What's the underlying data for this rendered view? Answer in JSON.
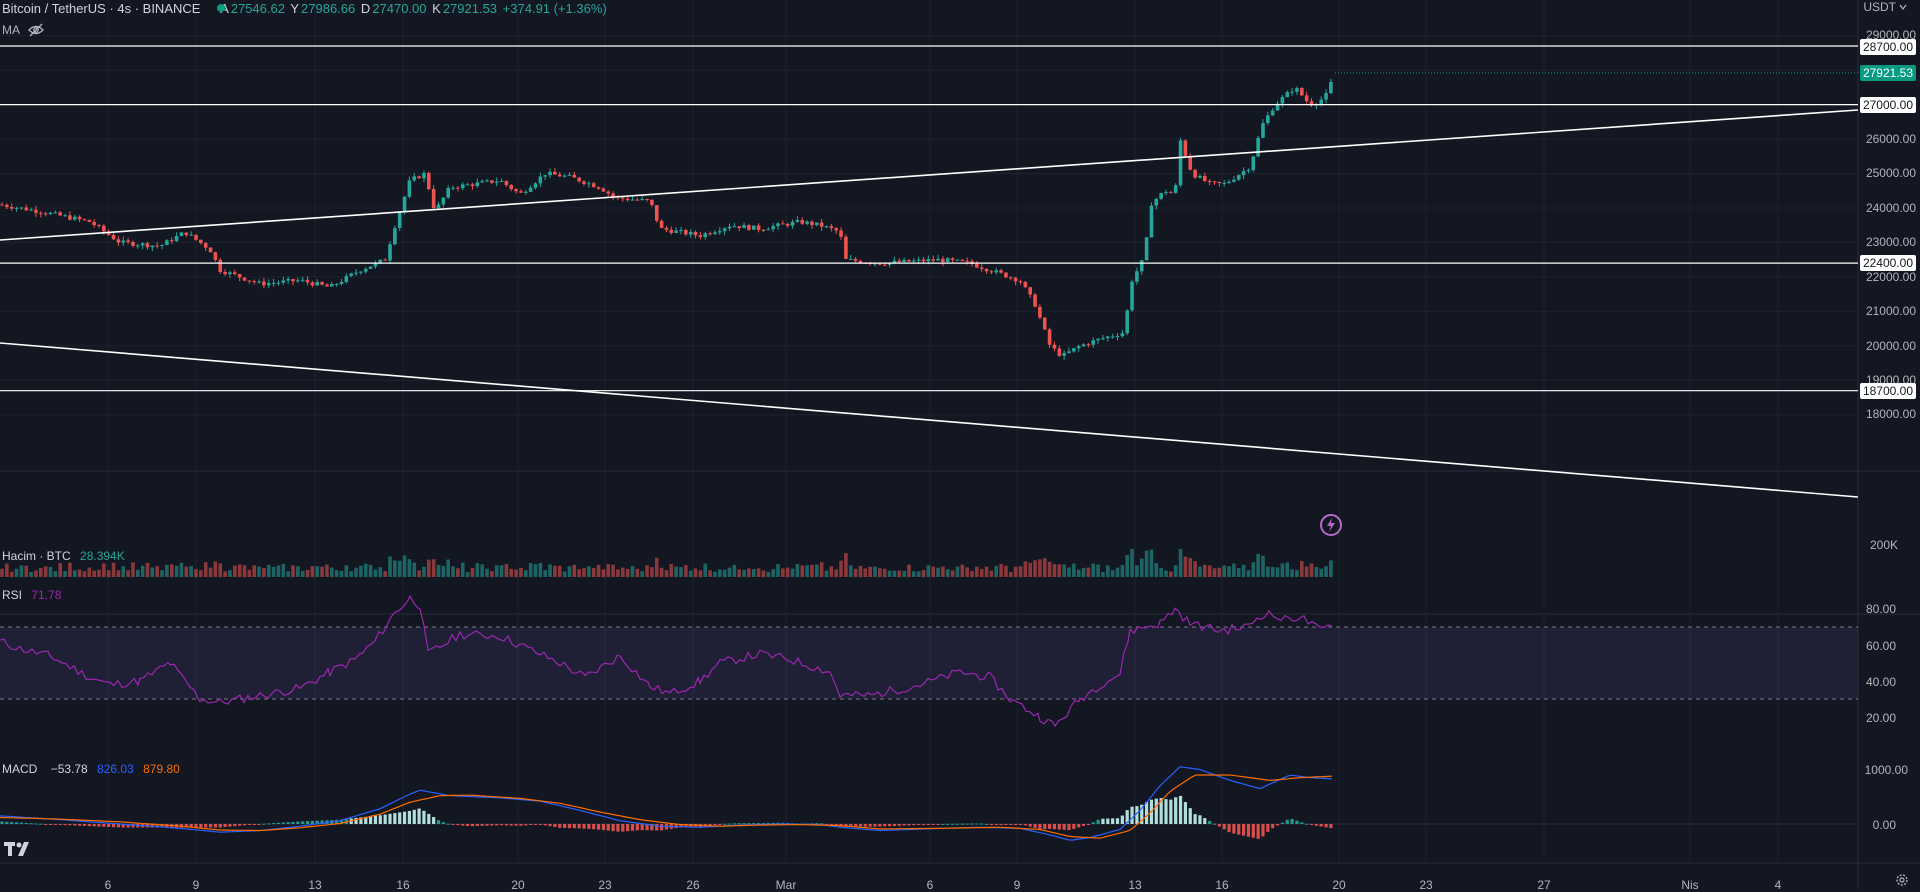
{
  "header": {
    "symbol": "Bitcoin / TetherUS · 4s · BINANCE",
    "open_label": "A",
    "open": "27546.62",
    "high_label": "Y",
    "high": "27986.66",
    "low_label": "D",
    "low": "27470.00",
    "close_label": "K",
    "close": "27921.53",
    "change": "+374.91 (+1.36%)",
    "ma_label": "MA",
    "currency": "USDT"
  },
  "price_axis": {
    "ticks": [
      "29000.00",
      "26000.00",
      "25000.00",
      "24000.00",
      "23000.00",
      "22000.00",
      "21000.00",
      "20000.00",
      "19000.00",
      "18000.00"
    ],
    "hlines": [
      "28700.00",
      "27000.00",
      "22400.00",
      "18700.00"
    ],
    "last_price": "27921.53"
  },
  "volume": {
    "label": "Hacim · BTC",
    "value": "28.394K",
    "axis_tick": "200K"
  },
  "rsi": {
    "label": "RSI",
    "value": "71.78",
    "ticks": [
      "80.00",
      "60.00",
      "40.00",
      "20.00"
    ]
  },
  "macd": {
    "label": "MACD",
    "hist": "−53.78",
    "macd": "826.03",
    "signal": "879.80",
    "ticks": [
      "1000.00",
      "0.00"
    ]
  },
  "time_axis": [
    "6",
    "9",
    "13",
    "16",
    "20",
    "23",
    "26",
    "Mar",
    "6",
    "9",
    "13",
    "16",
    "20",
    "23",
    "27",
    "Nis",
    "4"
  ],
  "colors": {
    "up": "#26a69a",
    "down": "#ef5350",
    "rsi": "#9c27b0",
    "macd": "#2962ff",
    "signal": "#ff6d00",
    "background": "#131722"
  },
  "icons": [
    "tradingview-logo-icon",
    "eye-hidden-icon",
    "lightning-icon",
    "settings-icon"
  ]
}
